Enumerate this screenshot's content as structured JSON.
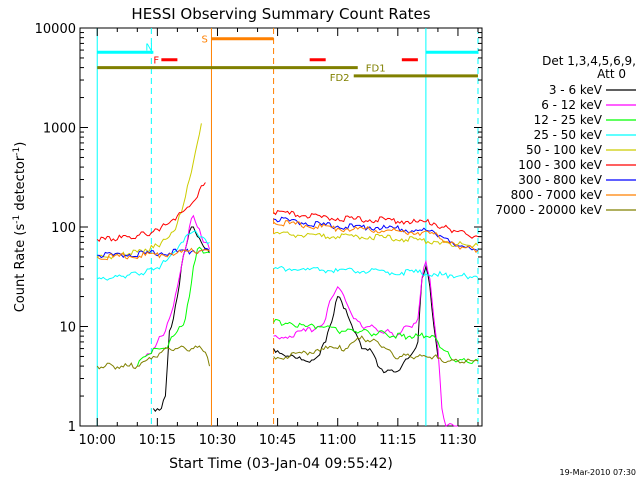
{
  "chart_data": {
    "type": "line",
    "title": "HESSI Observing Summary Count Rates",
    "xlabel": "Start Time (03-Jan-04 09:55:42)",
    "ylabel_main": "Count Rate (s",
    "ylabel_sup1": "-1",
    "ylabel_mid": " detector",
    "ylabel_sup2": "-1",
    "ylabel_end": ")",
    "y_scale": "log",
    "ylim": [
      1,
      10000
    ],
    "xlim_minutes": [
      -4.3,
      96.0
    ],
    "x_tick_labels": [
      "10:00",
      "10:15",
      "10:30",
      "10:45",
      "11:00",
      "11:15",
      "11:30"
    ],
    "y_tick_labels": [
      "1",
      "10",
      "100",
      "1000",
      "10000"
    ],
    "legend_title_1": "Det 1,3,4,5,6,9,",
    "legend_title_2": "Att 0",
    "legend_position": "right",
    "footer": "19-Mar-2010 07:30",
    "bar_labels": {
      "N": "N",
      "S": "S",
      "F": "F",
      "FD1": "FD1",
      "FD2": "FD2"
    },
    "series": [
      {
        "name": "3 - 6 keV",
        "color": "#000000",
        "x": [
          10,
          11,
          12,
          14,
          16,
          17,
          18,
          19,
          20,
          21,
          22,
          23,
          24,
          25,
          26,
          27,
          28,
          28.5,
          44,
          48,
          52,
          55,
          57,
          58,
          60,
          62,
          64,
          66,
          68,
          70,
          72,
          74,
          76,
          78,
          80,
          81,
          82,
          83,
          84,
          85,
          86
        ],
        "y": [
          null,
          null,
          null,
          1.5,
          1.5,
          2,
          9,
          12,
          20,
          40,
          60,
          90,
          100,
          80,
          70,
          60,
          55,
          null,
          6,
          5,
          4.5,
          5,
          7,
          10,
          20,
          15,
          9,
          6,
          6,
          4,
          3.5,
          3.5,
          4,
          5,
          7,
          30,
          40,
          25,
          10,
          5,
          null
        ]
      },
      {
        "name": "6 - 12 keV",
        "color": "#ff00ff",
        "x": [
          10,
          12,
          14,
          15,
          16,
          17,
          18,
          19,
          20,
          21,
          22,
          23,
          24,
          25,
          26,
          27,
          28,
          28.5,
          44,
          48,
          52,
          55,
          57,
          58,
          60,
          62,
          64,
          66,
          68,
          70,
          72,
          74,
          76,
          78,
          80,
          81,
          82,
          83,
          84,
          85,
          86,
          87,
          90
        ],
        "y": [
          null,
          5,
          6,
          7,
          8,
          9,
          12,
          16,
          25,
          40,
          60,
          100,
          130,
          100,
          80,
          70,
          60,
          null,
          8,
          8,
          9,
          10,
          12,
          18,
          25,
          18,
          12,
          10,
          10,
          9,
          9,
          8,
          9,
          10,
          12,
          30,
          45,
          30,
          12,
          6,
          1.5,
          1,
          1
        ]
      },
      {
        "name": "12 - 25 keV",
        "color": "#00ff00",
        "x": [
          10,
          12,
          14,
          15,
          16,
          17,
          18,
          19,
          20,
          21,
          22,
          23,
          24,
          25,
          26,
          27,
          28,
          28.5,
          44,
          48,
          52,
          55,
          58,
          60,
          62,
          64,
          66,
          68,
          70,
          72,
          74,
          76,
          78,
          80,
          82,
          84,
          85,
          86,
          88,
          90,
          92,
          94,
          95
        ],
        "y": [
          4,
          5,
          6,
          6,
          6,
          6,
          7,
          8,
          9,
          10,
          12,
          20,
          40,
          60,
          60,
          55,
          55,
          null,
          11,
          11,
          10,
          10,
          10,
          9,
          9,
          9,
          9,
          8.5,
          8.5,
          8.5,
          8,
          8,
          8,
          8,
          8,
          8,
          7,
          6,
          5,
          4.5,
          4.5,
          4.5,
          4.5
        ]
      },
      {
        "name": "25 - 50 keV",
        "color": "#00ffff",
        "x": [
          0,
          2,
          4,
          6,
          8,
          10,
          12,
          14,
          15,
          16,
          17,
          18,
          19,
          20,
          21,
          22,
          23,
          24,
          25,
          26,
          27,
          28,
          28.5,
          44,
          48,
          52,
          56,
          60,
          64,
          68,
          72,
          76,
          80,
          84,
          86,
          88,
          90,
          92,
          94,
          95
        ],
        "y": [
          30,
          30,
          31,
          32,
          33,
          34,
          35,
          37,
          39,
          42,
          45,
          50,
          55,
          60,
          70,
          80,
          85,
          90,
          85,
          80,
          75,
          70,
          null,
          38,
          38,
          37,
          37,
          36,
          36,
          36,
          35,
          35,
          35,
          34,
          33,
          33,
          32,
          32,
          32,
          31
        ]
      },
      {
        "name": "50 - 100 keV",
        "color": "#cccc00",
        "x": [
          0,
          2,
          4,
          6,
          8,
          10,
          12,
          14,
          15,
          16,
          17,
          18,
          19,
          20,
          21,
          22,
          23,
          24,
          25,
          26,
          27,
          28,
          28.5,
          44,
          48,
          52,
          56,
          60,
          64,
          68,
          72,
          76,
          80,
          84,
          86,
          88,
          90,
          92,
          94,
          95
        ],
        "y": [
          50,
          50,
          51,
          52,
          54,
          56,
          60,
          62,
          65,
          70,
          75,
          80,
          90,
          110,
          140,
          200,
          300,
          450,
          700,
          1100,
          null,
          null,
          null,
          85,
          84,
          82,
          80,
          80,
          80,
          80,
          78,
          76,
          74,
          72,
          70,
          68,
          67,
          66,
          65,
          65
        ]
      },
      {
        "name": "100 - 300 keV",
        "color": "#ff0000",
        "x": [
          0,
          2,
          4,
          6,
          8,
          10,
          12,
          14,
          15,
          16,
          17,
          18,
          19,
          20,
          21,
          22,
          23,
          24,
          25,
          26,
          27,
          28,
          28.5,
          44,
          48,
          52,
          56,
          60,
          64,
          68,
          72,
          76,
          80,
          84,
          86,
          88,
          90,
          92,
          94,
          95
        ],
        "y": [
          75,
          75,
          76,
          78,
          80,
          82,
          85,
          90,
          95,
          100,
          105,
          110,
          120,
          130,
          140,
          150,
          160,
          180,
          200,
          260,
          280,
          null,
          null,
          140,
          135,
          130,
          125,
          122,
          120,
          118,
          118,
          115,
          112,
          110,
          100,
          95,
          90,
          85,
          80,
          80
        ]
      },
      {
        "name": "300 - 800 keV",
        "color": "#0000ff",
        "x": [
          0,
          4,
          8,
          12,
          16,
          20,
          24,
          26,
          28,
          28.5,
          44,
          48,
          52,
          56,
          60,
          64,
          68,
          72,
          76,
          80,
          84,
          86,
          88,
          90,
          92,
          94,
          95
        ],
        "y": [
          52,
          52,
          53,
          54,
          55,
          56,
          58,
          58,
          58,
          null,
          120,
          115,
          110,
          105,
          102,
          100,
          100,
          98,
          95,
          92,
          90,
          80,
          70,
          65,
          62,
          60,
          58
        ]
      },
      {
        "name": "800 - 7000 keV",
        "color": "#ff8000",
        "x": [
          0,
          4,
          8,
          12,
          16,
          20,
          24,
          26,
          28,
          28.5,
          44,
          48,
          52,
          56,
          60,
          64,
          68,
          72,
          76,
          80,
          84,
          86,
          88,
          90,
          92,
          94,
          95
        ],
        "y": [
          50,
          50,
          51,
          52,
          53,
          55,
          57,
          58,
          58,
          null,
          112,
          108,
          104,
          100,
          97,
          95,
          94,
          92,
          90,
          88,
          85,
          75,
          68,
          64,
          62,
          60,
          58
        ]
      },
      {
        "name": "7000 - 20000 keV",
        "color": "#808000",
        "x": [
          0,
          2,
          4,
          6,
          8,
          10,
          12,
          14,
          16,
          18,
          20,
          22,
          24,
          26,
          27,
          28,
          28.5,
          44,
          48,
          52,
          56,
          60,
          62,
          64,
          66,
          68,
          70,
          72,
          74,
          76,
          78,
          80,
          82,
          84,
          86,
          88,
          90,
          92,
          94,
          95
        ],
        "y": [
          4,
          4,
          4,
          4,
          4,
          4,
          4.5,
          5,
          5.5,
          6,
          6,
          6,
          6,
          6,
          5.5,
          4,
          null,
          5,
          5,
          5.5,
          6,
          6,
          6,
          7,
          8,
          7,
          7,
          6,
          5,
          5,
          5,
          5,
          5,
          5,
          4.5,
          4.5,
          4.5,
          4.5,
          4.5,
          4.5
        ]
      }
    ],
    "state_bars": [
      {
        "label_key": "N",
        "color": "#00ffff",
        "x_start": 0,
        "x_end": 14,
        "y": 5700
      },
      {
        "label_key": "N",
        "color": "#00ffff",
        "x_start": 82,
        "x_end": 95,
        "y": 5700
      },
      {
        "label_key": "S",
        "color": "#ff8000",
        "x_start": 28.5,
        "x_end": 44,
        "y": 7800
      },
      {
        "label_key": "F",
        "color": "#ff0000",
        "x_start": 16,
        "x_end": 20,
        "y": 4800
      },
      {
        "label_key": "F",
        "color": "#ff0000",
        "x_start": 53,
        "x_end": 57,
        "y": 4800
      },
      {
        "label_key": "F",
        "color": "#ff0000",
        "x_start": 76,
        "x_end": 80,
        "y": 4800
      },
      {
        "label_key": "FD1",
        "color": "#808000",
        "x_start": 0,
        "x_end": 65,
        "y": 4000
      },
      {
        "label_key": "FD2",
        "color": "#808000",
        "x_start": 64,
        "x_end": 95,
        "y": 3300
      }
    ],
    "vertical_lines": [
      {
        "x": 0,
        "color": "#00ffff",
        "style": "solid"
      },
      {
        "x": 13.5,
        "color": "#00ffff",
        "style": "dashed"
      },
      {
        "x": 28.5,
        "color": "#ff8000",
        "style": "solid"
      },
      {
        "x": 44,
        "color": "#ff8000",
        "style": "dashed"
      },
      {
        "x": 82,
        "color": "#00ffff",
        "style": "solid"
      },
      {
        "x": 95,
        "color": "#00ffff",
        "style": "dashed"
      }
    ]
  }
}
